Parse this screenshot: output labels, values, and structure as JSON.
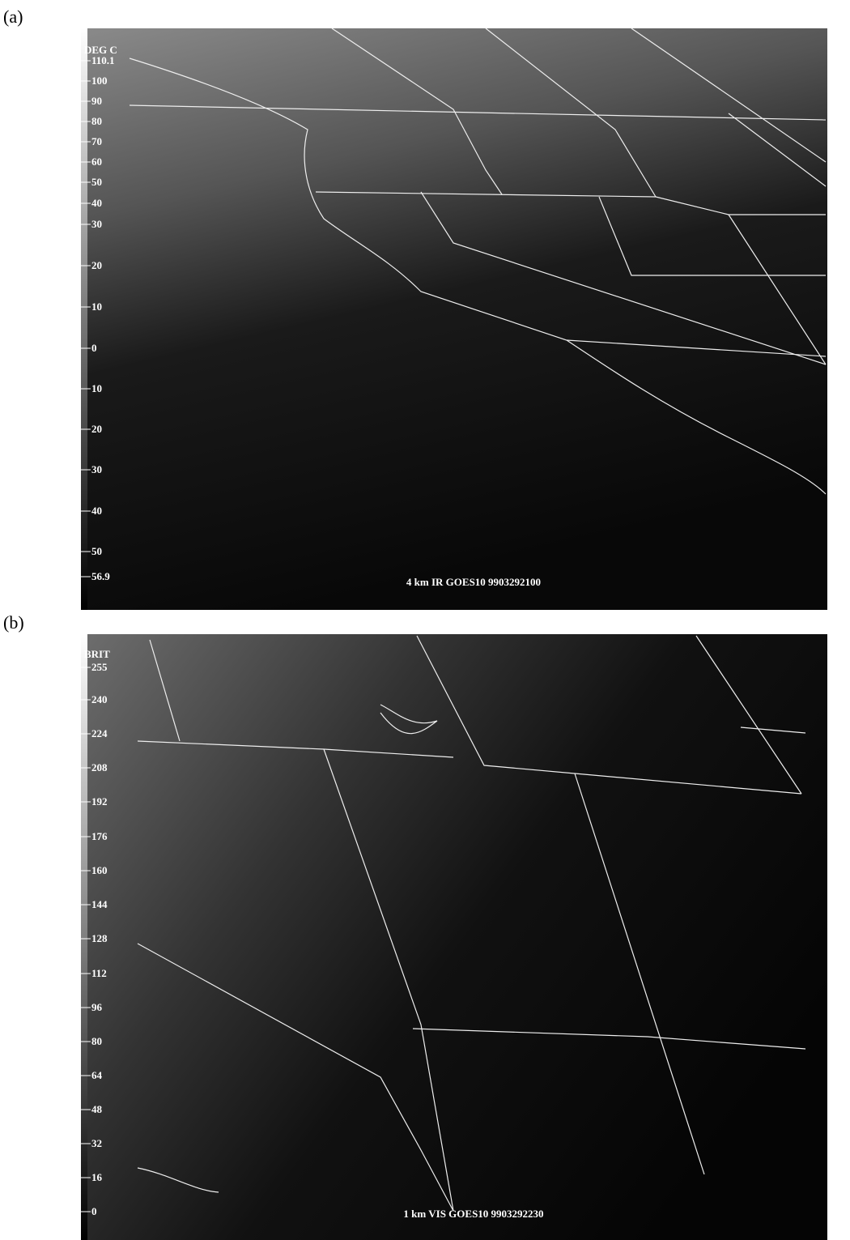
{
  "figure": {
    "panels": [
      {
        "label": "(a)",
        "scale_title": "DEG C",
        "scale_labels": [
          "110.1",
          "100",
          "90",
          "80",
          "70",
          "60",
          "50",
          "40",
          "30",
          "20",
          "10",
          "0",
          "10",
          "20",
          "30",
          "40",
          "50",
          "56.9"
        ],
        "caption": "4 km IR GOES10 9903292100"
      },
      {
        "label": "(b)",
        "scale_title": "BRIT",
        "scale_labels": [
          "255",
          "240",
          "224",
          "208",
          "192",
          "176",
          "160",
          "144",
          "128",
          "112",
          "96",
          "80",
          "64",
          "48",
          "32",
          "16",
          "0"
        ],
        "caption": "1 km VIS GOES10 9903292230"
      }
    ]
  }
}
